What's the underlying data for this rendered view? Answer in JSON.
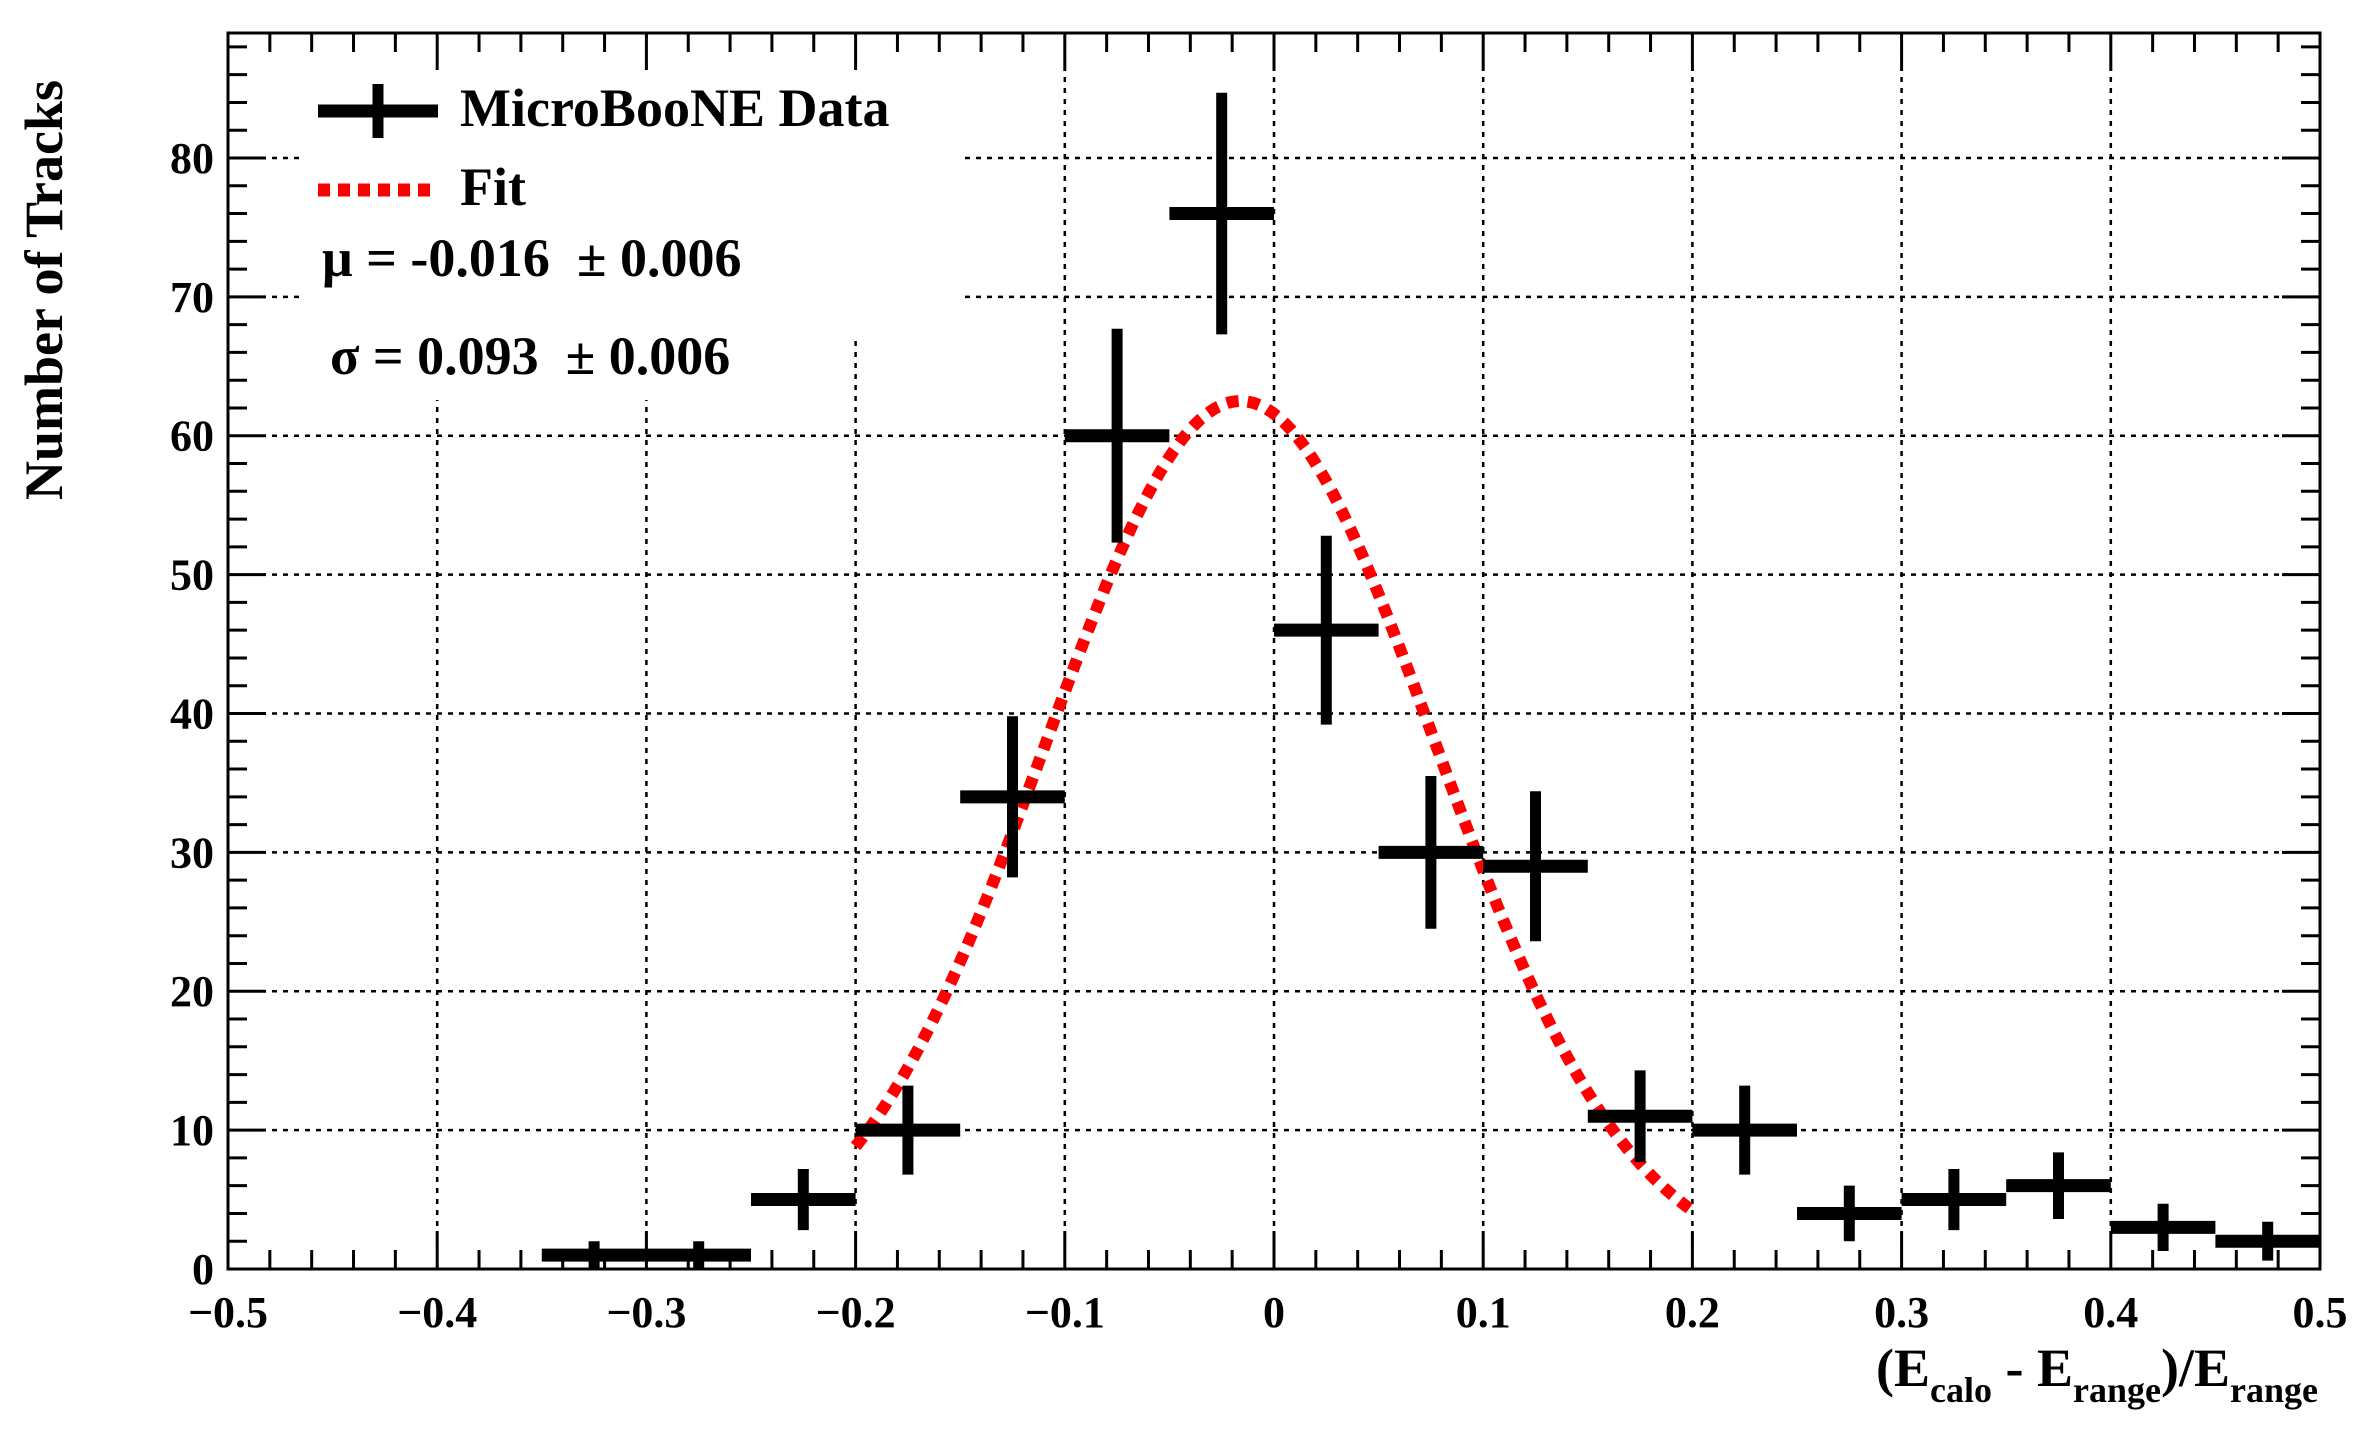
{
  "chart_data": {
    "type": "histogram",
    "title": "",
    "xlabel": "(E_calo - E_range)/E_range",
    "xlabel_parts": {
      "open": "(E",
      "sub1": "calo",
      "mid": " - E",
      "sub2": "range",
      "mid2": ")/E",
      "sub3": "range"
    },
    "ylabel": "Number of Tracks",
    "xlim": [
      -0.5,
      0.5
    ],
    "ylim": [
      0,
      89
    ],
    "grid": true,
    "x_major_ticks": [
      -0.5,
      -0.4,
      -0.3,
      -0.2,
      -0.1,
      0,
      0.1,
      0.2,
      0.3,
      0.4,
      0.5
    ],
    "x_tick_labels": [
      "−0.5",
      "−0.4",
      "−0.3",
      "−0.2",
      "−0.1",
      "0",
      "0.1",
      "0.2",
      "0.3",
      "0.4",
      "0.5"
    ],
    "y_major_ticks": [
      0,
      10,
      20,
      30,
      40,
      50,
      60,
      70,
      80
    ],
    "y_tick_labels": [
      "0",
      "10",
      "20",
      "30",
      "40",
      "50",
      "60",
      "70",
      "80"
    ],
    "bin_width": 0.05,
    "series": [
      {
        "name": "MicroBooNE Data",
        "color": "#000000",
        "x": [
          -0.325,
          -0.275,
          -0.225,
          -0.175,
          -0.125,
          -0.075,
          -0.025,
          0.025,
          0.075,
          0.125,
          0.175,
          0.225,
          0.275,
          0.325,
          0.375,
          0.425,
          0.475
        ],
        "y": [
          1,
          1,
          5,
          10,
          34,
          60,
          76,
          46,
          30,
          29,
          11,
          10,
          4,
          5,
          6,
          3,
          2
        ],
        "yerr": [
          1,
          1,
          2.2,
          3.2,
          5.8,
          7.7,
          8.7,
          6.8,
          5.5,
          5.4,
          3.3,
          3.2,
          2,
          2.2,
          2.4,
          1.7,
          1.4
        ]
      },
      {
        "name": "Fit",
        "color": "#ff0000",
        "style": "dotted",
        "function": "gaussian",
        "amplitude": 62.5,
        "mu": -0.016,
        "sigma": 0.093,
        "range": [
          -0.2,
          0.2
        ]
      }
    ],
    "legend": {
      "position": "top-left",
      "entries": [
        "MicroBooNE Data",
        "Fit"
      ]
    },
    "annotations": {
      "mu_text": "μ = -0.016  ± 0.006",
      "sigma_text": "σ = 0.093  ± 0.006"
    }
  }
}
